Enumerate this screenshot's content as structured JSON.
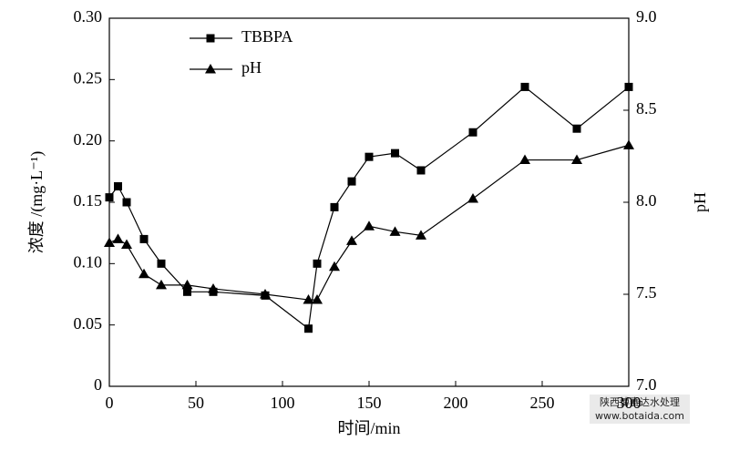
{
  "chart_data": {
    "type": "line",
    "x_label": "时间/min",
    "y_label": "浓度 /(mg·L⁻¹)",
    "y2_label": "pH",
    "x": [
      0,
      5,
      10,
      20,
      30,
      45,
      60,
      90,
      115,
      120,
      130,
      140,
      150,
      165,
      180,
      210,
      240,
      270,
      300
    ],
    "series": [
      {
        "name": "TBBPA",
        "color": "#000000",
        "marker": "square",
        "values": [
          0.154,
          0.163,
          0.15,
          0.12,
          0.1,
          0.077,
          0.077,
          0.074,
          0.047,
          0.1,
          0.146,
          0.167,
          0.187,
          0.19,
          0.176,
          0.207,
          0.244,
          0.21,
          0.244
        ]
      },
      {
        "name": "pH",
        "color": "#000000",
        "marker": "triangle",
        "axis": "y2",
        "values": [
          7.78,
          7.8,
          7.77,
          7.61,
          7.55,
          7.55,
          7.53,
          7.5,
          7.47,
          7.47,
          7.65,
          7.79,
          7.87,
          7.84,
          7.82,
          8.02,
          8.23,
          8.23,
          8.31
        ]
      }
    ],
    "xlim": [
      0,
      300
    ],
    "xticks": [
      0,
      50,
      100,
      150,
      200,
      250,
      300
    ],
    "ylim": [
      0,
      0.3
    ],
    "yticks": [
      0,
      0.05,
      {
        "value": 0.1,
        "label": "0.10"
      },
      0.15,
      {
        "value": 0.2,
        "label": "0.20"
      },
      0.25,
      {
        "value": 0.3,
        "label": "0.30"
      }
    ],
    "y2lim": [
      7,
      9
    ],
    "y2ticks": [
      {
        "value": 7,
        "label": "7.0"
      },
      7.5,
      {
        "value": 8,
        "label": "8.0"
      },
      8.5,
      {
        "value": 9,
        "label": "9.0"
      }
    ],
    "legend": "upper left",
    "watermark": [
      "陕西博赛达水处理",
      "www.botaida.com"
    ]
  }
}
